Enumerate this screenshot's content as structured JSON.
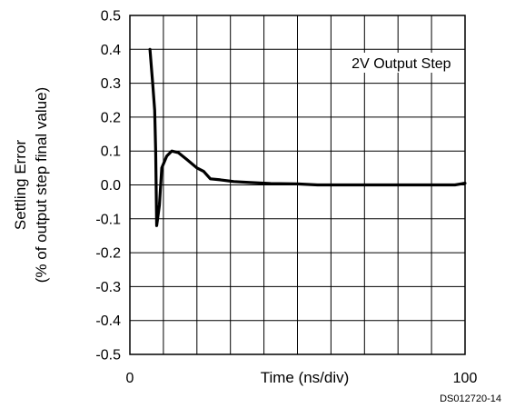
{
  "chart_data": {
    "type": "line",
    "title": "",
    "xlabel": "Time (ns/div)",
    "ylabel_line1": "Settling Error",
    "ylabel_line2": "(% of output step final value)",
    "xlim": [
      0,
      100
    ],
    "ylim": [
      -0.5,
      0.5
    ],
    "x_tick_labels": [
      {
        "x": 0,
        "label": "0"
      },
      {
        "x": 100,
        "label": "100"
      }
    ],
    "y_ticks": [
      0.5,
      0.4,
      0.3,
      0.2,
      0.1,
      0.0,
      -0.1,
      -0.2,
      -0.3,
      -0.4,
      -0.5
    ],
    "y_tick_labels": [
      "0.5",
      "0.4",
      "0.3",
      "0.2",
      "0.1",
      "0.0",
      "-0.1",
      "-0.2",
      "-0.3",
      "-0.4",
      "-0.5"
    ],
    "grid": true,
    "grid_x_divisions": 10,
    "annotation": "2V Output Step",
    "annotation_placement": "top-right",
    "footnote": "DS012720-14",
    "line_color": "#000000",
    "series": [
      {
        "values": [
          {
            "x": 6.0,
            "y": 0.4
          },
          {
            "x": 6.8,
            "y": 0.3
          },
          {
            "x": 7.4,
            "y": 0.22
          },
          {
            "x": 7.7,
            "y": 0.1
          },
          {
            "x": 8.0,
            "y": -0.12
          },
          {
            "x": 8.8,
            "y": -0.06
          },
          {
            "x": 9.5,
            "y": 0.05
          },
          {
            "x": 11.0,
            "y": 0.085
          },
          {
            "x": 12.5,
            "y": 0.1
          },
          {
            "x": 14.5,
            "y": 0.095
          },
          {
            "x": 17.0,
            "y": 0.075
          },
          {
            "x": 20.0,
            "y": 0.05
          },
          {
            "x": 22.0,
            "y": 0.04
          },
          {
            "x": 24.0,
            "y": 0.018
          },
          {
            "x": 27.0,
            "y": 0.015
          },
          {
            "x": 31.0,
            "y": 0.01
          },
          {
            "x": 36.0,
            "y": 0.007
          },
          {
            "x": 42.0,
            "y": 0.004
          },
          {
            "x": 50.0,
            "y": 0.003
          },
          {
            "x": 56.0,
            "y": 0.0
          },
          {
            "x": 70.0,
            "y": 0.0
          },
          {
            "x": 85.0,
            "y": 0.0
          },
          {
            "x": 97.0,
            "y": 0.0
          },
          {
            "x": 100.0,
            "y": 0.005
          }
        ]
      }
    ]
  }
}
